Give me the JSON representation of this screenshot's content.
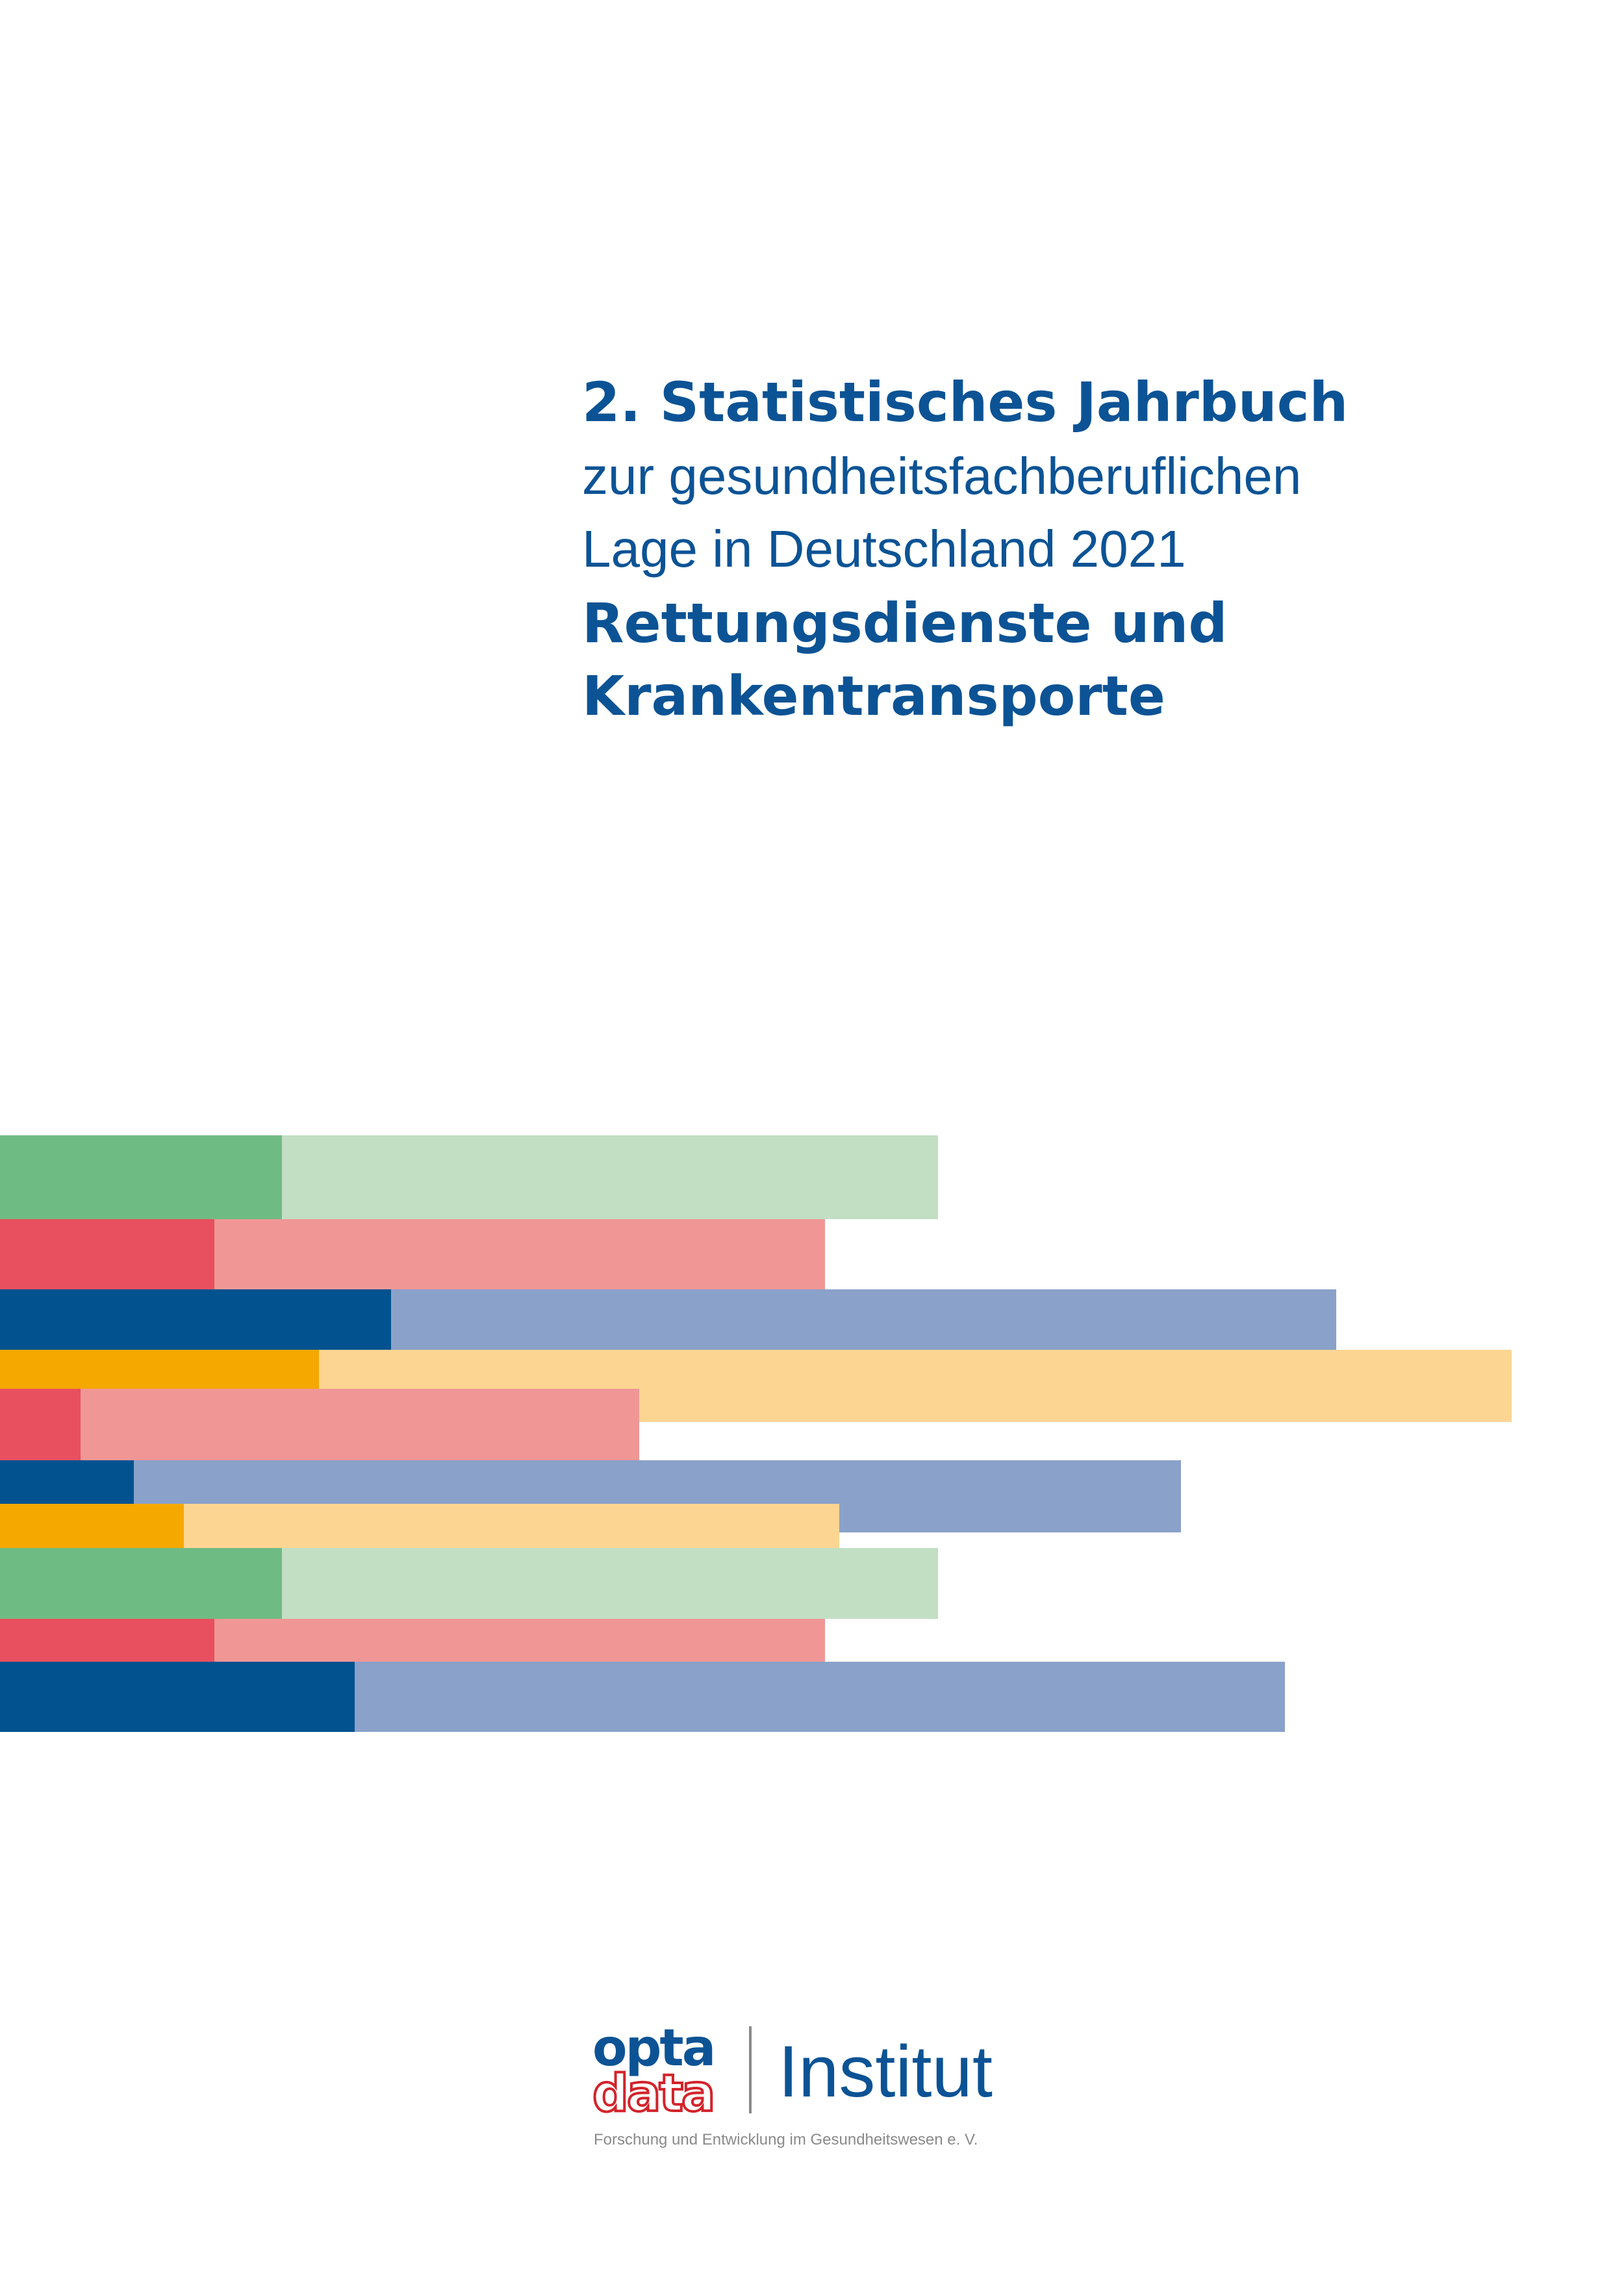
{
  "cover": {
    "title": {
      "line1": "2. Statistisches Jahrbuch",
      "line2": "zur gesundheitsfachberuflichen",
      "line3": "Lage in Deutschland 2021",
      "line4": "Rettungsdienste und",
      "line5": "Krankentransporte"
    },
    "logo": {
      "brand_top": "opta",
      "brand_bottom": "data",
      "institute": "Institut"
    },
    "tagline": "Forschung und Entwicklung im Gesundheitswesen e. V."
  }
}
